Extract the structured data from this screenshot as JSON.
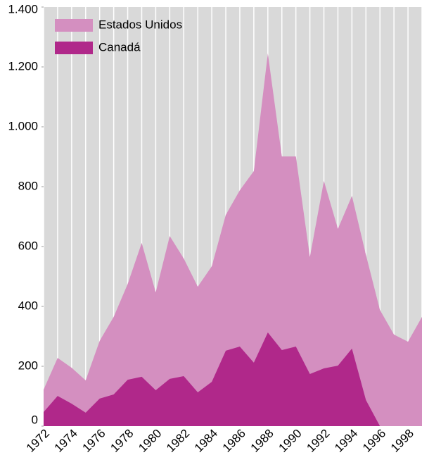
{
  "chart_data": {
    "type": "area",
    "x": [
      1972,
      1973,
      1974,
      1975,
      1976,
      1977,
      1978,
      1979,
      1980,
      1981,
      1982,
      1983,
      1984,
      1985,
      1986,
      1987,
      1988,
      1989,
      1990,
      1991,
      1992,
      1993,
      1994,
      1995,
      1996,
      1997,
      1998,
      1999
    ],
    "xlim": [
      1972,
      1999
    ],
    "xticks": [
      1972,
      1974,
      1976,
      1978,
      1980,
      1982,
      1984,
      1986,
      1988,
      1990,
      1992,
      1994,
      1996,
      1998
    ],
    "ylim": [
      0,
      1400
    ],
    "yticks": [
      0,
      200,
      400,
      600,
      800,
      {
        "value": 1000,
        "label": "1.000"
      },
      {
        "value": 1200,
        "label": "1.200"
      },
      {
        "value": 1400,
        "label": "1.400"
      }
    ],
    "grid": true,
    "legend": "top-left",
    "series": [
      {
        "name": "Estados Unidos",
        "color": "#d48fc0",
        "values": [
          122,
          228,
          195,
          153,
          285,
          365,
          475,
          612,
          447,
          635,
          560,
          466,
          534,
          706,
          788,
          852,
          1245,
          901,
          901,
          565,
          819,
          659,
          769,
          572,
          388,
          306,
          282,
          365
        ]
      },
      {
        "name": "Canadá",
        "color": "#b0288a",
        "values": [
          47,
          101,
          75,
          45,
          92,
          106,
          155,
          165,
          120,
          158,
          167,
          113,
          148,
          252,
          266,
          212,
          313,
          254,
          266,
          174,
          193,
          202,
          259,
          87,
          0,
          null,
          null,
          null
        ]
      }
    ]
  }
}
